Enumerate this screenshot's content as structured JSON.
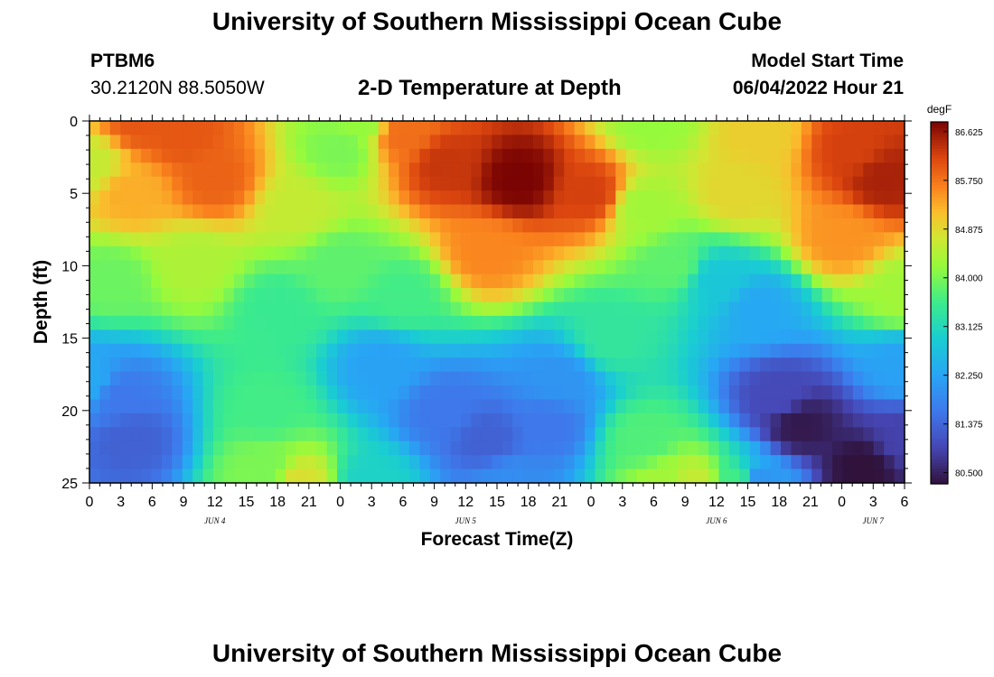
{
  "header": {
    "title": "University of Southern Mississippi Ocean Cube",
    "station_id": "PTBM6",
    "coordinates": "30.2120N  88.5050W",
    "subtitle": "2-D Temperature at Depth",
    "model_start_label": "Model Start Time",
    "model_start_value": "06/04/2022 Hour 21"
  },
  "footer": {
    "title": "University of Southern Mississippi Ocean Cube"
  },
  "chart_data": {
    "type": "heatmap",
    "title": "2-D Temperature at Depth",
    "xlabel": "Forecast Time(Z)",
    "ylabel": "Depth (ft)",
    "x_tick_labels": [
      "0",
      "3",
      "6",
      "9",
      "12",
      "15",
      "18",
      "21",
      "0",
      "3",
      "6",
      "9",
      "12",
      "15",
      "18",
      "21",
      "0",
      "3",
      "6",
      "9",
      "12",
      "15",
      "18",
      "21",
      "0",
      "3",
      "6"
    ],
    "x_range_hours": [
      0,
      78
    ],
    "day_labels": [
      {
        "label": "JUN 4",
        "hour": 12
      },
      {
        "label": "JUN 5",
        "hour": 36
      },
      {
        "label": "JUN 6",
        "hour": 60
      },
      {
        "label": "JUN 7",
        "hour": 75
      }
    ],
    "y_ticks": [
      0,
      5,
      10,
      15,
      20,
      25
    ],
    "y_range": [
      0,
      25
    ],
    "y_inverted": true,
    "colorbar": {
      "unit": "degF",
      "min": 80.3,
      "max": 86.8,
      "tick_values": [
        86.625,
        85.75,
        84.875,
        84.0,
        83.125,
        82.25,
        81.375,
        80.5
      ],
      "tick_labels": [
        "86.625",
        "85.750",
        "84.875",
        "84.000",
        "83.125",
        "82.250",
        "81.375",
        "80.500"
      ],
      "colormap": "turbo"
    },
    "features": [
      {
        "hour": 5,
        "depth": 0,
        "temp": 86.0
      },
      {
        "hour": 9,
        "depth": 1,
        "temp": 86.0
      },
      {
        "hour": 12,
        "depth": 4,
        "temp": 85.9
      },
      {
        "hour": 4,
        "depth": 5,
        "temp": 85.3
      },
      {
        "hour": 30,
        "depth": 1,
        "temp": 85.8
      },
      {
        "hour": 34,
        "depth": 3,
        "temp": 86.3
      },
      {
        "hour": 41,
        "depth": 4,
        "temp": 86.8
      },
      {
        "hour": 48,
        "depth": 5,
        "temp": 86.2
      },
      {
        "hour": 38,
        "depth": 9,
        "temp": 85.6
      },
      {
        "hour": 73,
        "depth": 2,
        "temp": 86.2
      },
      {
        "hour": 76,
        "depth": 4,
        "temp": 86.5
      },
      {
        "hour": 0,
        "depth": 3,
        "temp": 84.6
      },
      {
        "hour": 24,
        "depth": 2,
        "temp": 84.0
      },
      {
        "hour": 26,
        "depth": 0,
        "temp": 84.2
      },
      {
        "hour": 10,
        "depth": 10,
        "temp": 84.4
      },
      {
        "hour": 54,
        "depth": 0,
        "temp": 84.2
      },
      {
        "hour": 53,
        "depth": 6,
        "temp": 84.3
      },
      {
        "hour": 72,
        "depth": 8,
        "temp": 85.5
      },
      {
        "hour": 2,
        "depth": 11,
        "temp": 83.9
      },
      {
        "hour": 18,
        "depth": 13,
        "temp": 83.5
      },
      {
        "hour": 24,
        "depth": 10,
        "temp": 83.8
      },
      {
        "hour": 30,
        "depth": 12,
        "temp": 83.6
      },
      {
        "hour": 56,
        "depth": 10,
        "temp": 83.8
      },
      {
        "hour": 60,
        "depth": 11,
        "temp": 82.8
      },
      {
        "hour": 64,
        "depth": 13,
        "temp": 82.3
      },
      {
        "hour": 3,
        "depth": 19,
        "temp": 81.6
      },
      {
        "hour": 4,
        "depth": 22,
        "temp": 81.3
      },
      {
        "hour": 0,
        "depth": 18,
        "temp": 82.3
      },
      {
        "hour": 17,
        "depth": 20,
        "temp": 83.6
      },
      {
        "hour": 17,
        "depth": 24,
        "temp": 84.0
      },
      {
        "hour": 20,
        "depth": 25,
        "temp": 84.8
      },
      {
        "hour": 28,
        "depth": 17,
        "temp": 82.2
      },
      {
        "hour": 34,
        "depth": 20,
        "temp": 81.6
      },
      {
        "hour": 38,
        "depth": 22,
        "temp": 81.3
      },
      {
        "hour": 44,
        "depth": 21,
        "temp": 81.6
      },
      {
        "hour": 45,
        "depth": 18,
        "temp": 82.0
      },
      {
        "hour": 40,
        "depth": 25,
        "temp": 81.9
      },
      {
        "hour": 27,
        "depth": 25,
        "temp": 83.0
      },
      {
        "hour": 50,
        "depth": 15,
        "temp": 83.4
      },
      {
        "hour": 53,
        "depth": 22,
        "temp": 83.7
      },
      {
        "hour": 55,
        "depth": 25,
        "temp": 84.3
      },
      {
        "hour": 58,
        "depth": 25,
        "temp": 84.6
      },
      {
        "hour": 62,
        "depth": 25,
        "temp": 83.6
      },
      {
        "hour": 66,
        "depth": 19,
        "temp": 81.0
      },
      {
        "hour": 68,
        "depth": 21,
        "temp": 80.4
      },
      {
        "hour": 74,
        "depth": 24,
        "temp": 80.3
      },
      {
        "hour": 78,
        "depth": 22,
        "temp": 80.9
      },
      {
        "hour": 64,
        "depth": 25,
        "temp": 82.0
      },
      {
        "hour": 78,
        "depth": 17,
        "temp": 82.2
      },
      {
        "hour": 78,
        "depth": 12,
        "temp": 84.3
      },
      {
        "hour": 20,
        "depth": 6,
        "temp": 84.6
      },
      {
        "hour": 62,
        "depth": 5,
        "temp": 84.9
      },
      {
        "hour": 64,
        "depth": 1,
        "temp": 85.0
      }
    ]
  }
}
